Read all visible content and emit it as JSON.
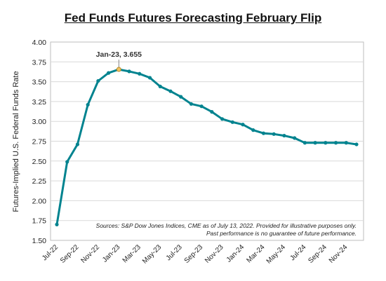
{
  "chart_data": {
    "type": "line",
    "title": "Fed Funds Futures Forecasting February Flip",
    "ylabel": "Futures-Implied U.S. Federal Funds Rate",
    "xlabel": "",
    "ylim": [
      1.5,
      4.0
    ],
    "yticks": [
      "1.50",
      "1.75",
      "2.00",
      "2.25",
      "2.50",
      "2.75",
      "3.00",
      "3.25",
      "3.50",
      "3.75",
      "4.00"
    ],
    "x": [
      "Jul-22",
      "Aug-22",
      "Sep-22",
      "Oct-22",
      "Nov-22",
      "Dec-22",
      "Jan-23",
      "Feb-23",
      "Mar-23",
      "Apr-23",
      "May-23",
      "Jun-23",
      "Jul-23",
      "Aug-23",
      "Sep-23",
      "Oct-23",
      "Nov-23",
      "Dec-23",
      "Jan-24",
      "Feb-24",
      "Mar-24",
      "Apr-24",
      "May-24",
      "Jun-24",
      "Jul-24",
      "Aug-24",
      "Sep-24",
      "Oct-24",
      "Nov-24",
      "Dec-24"
    ],
    "xticks": [
      "Jul-22",
      "Sep-22",
      "Nov-22",
      "Jan-23",
      "Mar-23",
      "May-23",
      "Jul-23",
      "Sep-23",
      "Nov-23",
      "Jan-24",
      "Mar-24",
      "May-24",
      "Jul-24",
      "Sep-24",
      "Nov-24"
    ],
    "series": [
      {
        "values": [
          1.7,
          2.49,
          2.71,
          3.21,
          3.51,
          3.61,
          3.655,
          3.63,
          3.6,
          3.55,
          3.44,
          3.38,
          3.31,
          3.22,
          3.19,
          3.12,
          3.03,
          2.99,
          2.96,
          2.89,
          2.85,
          2.84,
          2.82,
          2.79,
          2.73,
          2.73,
          2.73,
          2.73,
          2.73,
          2.71
        ],
        "color": "#00838f"
      }
    ],
    "annotation": {
      "text": "Jan-23, 3.655",
      "x": "Jan-23",
      "y": 3.655
    },
    "grid": true,
    "source_note_1": "Sources: S&P Dow Jones Indices, CME as of July 13, 2022.  Provided for illustrative purposes only.",
    "source_note_2": "Past performance is no guarantee of future performance."
  }
}
